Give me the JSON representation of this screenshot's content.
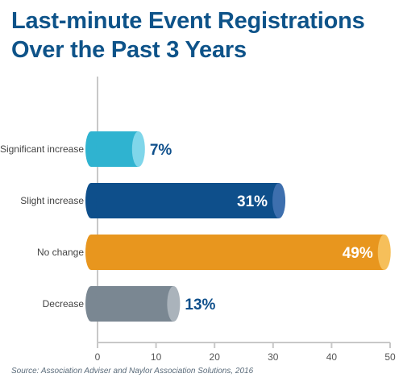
{
  "title_lines": [
    "Last-minute Event Registrations",
    "Over the Past 3 Years"
  ],
  "source": "Source: Association Adviser and Naylor Association Solutions, 2016",
  "chart_data": {
    "type": "bar",
    "orientation": "horizontal",
    "title": "Last-minute Event Registrations Over the Past 3 Years",
    "categories": [
      "Significant increase",
      "Slight increase",
      "No change",
      "Decrease"
    ],
    "values": [
      7,
      31,
      49,
      13
    ],
    "value_labels": [
      "7%",
      "31%",
      "49%",
      "13%"
    ],
    "xlim": [
      0,
      50
    ],
    "xticks": [
      0,
      10,
      20,
      30,
      40,
      50
    ],
    "grid": false,
    "legend": "none",
    "colors": {
      "bar_fill": [
        "#2fb3d0",
        "#0e4f8b",
        "#e8961e",
        "#7a8792"
      ],
      "bar_cap": [
        "#7fd6ea",
        "#3d6fae",
        "#f6bf5a",
        "#aab3bb"
      ],
      "label_inside": "#ffffff",
      "label_outside": "#0e4f8b",
      "axis": "#c8c8c8",
      "tick_text": "#555555",
      "category_text": "#444444"
    }
  }
}
